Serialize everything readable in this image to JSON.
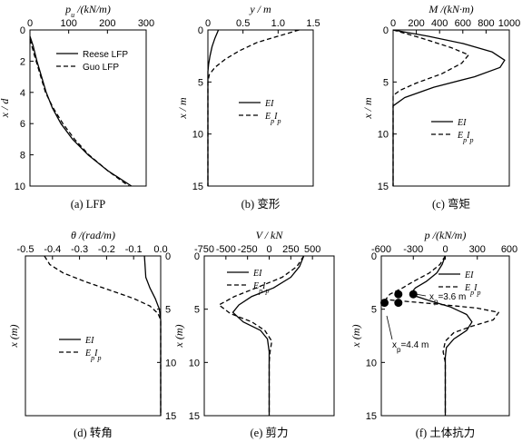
{
  "chart_data": [
    {
      "id": "a",
      "type": "line",
      "caption": "(a) LFP",
      "xlabel": "p_u /(kN/m)",
      "ylabel": "x / d",
      "xlim": [
        0,
        300
      ],
      "ylim": [
        0,
        10
      ],
      "y_reversed": true,
      "x_ticks": [
        0,
        100,
        200,
        300
      ],
      "y_ticks": [
        0,
        2,
        4,
        6,
        8,
        10
      ],
      "legend": "top-right",
      "series": [
        {
          "name": "Reese LFP",
          "style": "solid",
          "points": [
            [
              0,
              0.4
            ],
            [
              8,
              1
            ],
            [
              18,
              2
            ],
            [
              30,
              3
            ],
            [
              42,
              4
            ],
            [
              58,
              5
            ],
            [
              80,
              6
            ],
            [
              110,
              7
            ],
            [
              150,
              8
            ],
            [
              200,
              9
            ],
            [
              262,
              10
            ]
          ]
        },
        {
          "name": "Guo LFP",
          "style": "dashed",
          "points": [
            [
              0,
              0.6
            ],
            [
              10,
              1.5
            ],
            [
              22,
              2.5
            ],
            [
              40,
              4
            ],
            [
              60,
              5
            ],
            [
              85,
              6
            ],
            [
              115,
              7
            ],
            [
              152,
              8
            ],
            [
              200,
              9
            ],
            [
              255,
              10
            ]
          ]
        }
      ]
    },
    {
      "id": "b",
      "type": "line",
      "caption": "(b) 变形",
      "xlabel": "y / m",
      "ylabel": "x / m",
      "xlim": [
        0,
        1.5
      ],
      "ylim": [
        0,
        15
      ],
      "y_reversed": true,
      "x_ticks": [
        0,
        0.5,
        1.0,
        1.5
      ],
      "x_tick_labels": [
        "0",
        "0.5",
        "1.0",
        "1.5"
      ],
      "y_ticks": [
        0,
        5,
        10,
        15
      ],
      "legend": "center",
      "series": [
        {
          "name": "EI",
          "style": "solid",
          "points": [
            [
              0.15,
              0
            ],
            [
              0.1,
              0.8
            ],
            [
              0.06,
              1.6
            ],
            [
              0.03,
              2.5
            ],
            [
              0.01,
              3.3
            ],
            [
              0,
              4
            ],
            [
              0,
              15
            ]
          ]
        },
        {
          "name": "EpIp",
          "style": "dashed",
          "points": [
            [
              1.3,
              0
            ],
            [
              1.0,
              0.6
            ],
            [
              0.7,
              1.2
            ],
            [
              0.45,
              2
            ],
            [
              0.25,
              2.8
            ],
            [
              0.1,
              3.6
            ],
            [
              0.02,
              4.3
            ],
            [
              0,
              5
            ],
            [
              0,
              15
            ]
          ]
        }
      ]
    },
    {
      "id": "c",
      "type": "line",
      "caption": "(c) 弯矩",
      "xlabel": "M /(kN·m)",
      "ylabel": "x / m",
      "xlim": [
        0,
        1000
      ],
      "ylim": [
        0,
        15
      ],
      "y_reversed": true,
      "x_ticks": [
        0,
        200,
        400,
        600,
        800,
        1000
      ],
      "y_ticks": [
        0,
        5,
        10,
        15
      ],
      "legend": "bottom-right",
      "series": [
        {
          "name": "EI",
          "style": "solid",
          "points": [
            [
              0,
              0
            ],
            [
              300,
              0.6
            ],
            [
              600,
              1.3
            ],
            [
              850,
              2.1
            ],
            [
              960,
              2.9
            ],
            [
              920,
              3.6
            ],
            [
              700,
              4.5
            ],
            [
              350,
              5.5
            ],
            [
              100,
              6.5
            ],
            [
              0,
              7.3
            ],
            [
              0,
              15
            ]
          ]
        },
        {
          "name": "EpIp",
          "style": "dashed",
          "points": [
            [
              0,
              0
            ],
            [
              250,
              0.8
            ],
            [
              500,
              1.7
            ],
            [
              650,
              2.4
            ],
            [
              590,
              3.2
            ],
            [
              420,
              4.2
            ],
            [
              200,
              5.1
            ],
            [
              60,
              5.8
            ],
            [
              0,
              6.3
            ],
            [
              0,
              15
            ]
          ]
        }
      ]
    },
    {
      "id": "d",
      "type": "line",
      "caption": "(d) 转角",
      "xlabel": "θ /(rad/m)",
      "ylabel": "x (m)",
      "xlim": [
        -0.5,
        0.0
      ],
      "ylim": [
        0,
        15
      ],
      "y_reversed": true,
      "y_axis_side": "right",
      "x_ticks": [
        -0.5,
        -0.4,
        -0.3,
        -0.2,
        -0.1,
        0.0
      ],
      "x_tick_labels": [
        "-0.5",
        "-0.4",
        "-0.3",
        "-0.2",
        "-0.1",
        "0.0"
      ],
      "y_ticks": [
        0,
        5,
        10,
        15
      ],
      "legend": "bottom-left",
      "series": [
        {
          "name": "EI",
          "style": "solid",
          "points": [
            [
              -0.06,
              0
            ],
            [
              -0.055,
              2
            ],
            [
              -0.04,
              3
            ],
            [
              -0.02,
              4
            ],
            [
              -0.005,
              5
            ],
            [
              0,
              6
            ],
            [
              0,
              15
            ]
          ]
        },
        {
          "name": "EpIp",
          "style": "dashed",
          "points": [
            [
              -0.43,
              0
            ],
            [
              -0.41,
              0.8
            ],
            [
              -0.36,
              1.6
            ],
            [
              -0.28,
              2.4
            ],
            [
              -0.19,
              3.2
            ],
            [
              -0.1,
              4
            ],
            [
              -0.04,
              4.7
            ],
            [
              -0.01,
              5.4
            ],
            [
              0,
              6
            ],
            [
              0,
              15
            ]
          ]
        }
      ]
    },
    {
      "id": "e",
      "type": "line",
      "caption": "(e) 剪力",
      "xlabel": "V / kN",
      "ylabel": "x (m)",
      "xlim": [
        -750,
        750
      ],
      "ylim": [
        0,
        15
      ],
      "y_reversed": true,
      "x_ticks": [
        -750,
        -500,
        -250,
        0,
        250,
        500
      ],
      "x_tick_labels": [
        "-750",
        "-500",
        "-250",
        "0",
        "250",
        "500"
      ],
      "y_ticks": [
        0,
        5,
        10,
        15
      ],
      "legend": "top-left",
      "series": [
        {
          "name": "EI",
          "style": "solid",
          "points": [
            [
              400,
              0
            ],
            [
              350,
              1
            ],
            [
              250,
              2
            ],
            [
              50,
              3
            ],
            [
              -200,
              3.8
            ],
            [
              -350,
              4.6
            ],
            [
              -420,
              5.3
            ],
            [
              -300,
              6.2
            ],
            [
              -100,
              7
            ],
            [
              -20,
              7.8
            ],
            [
              0,
              9
            ],
            [
              0,
              15
            ]
          ]
        },
        {
          "name": "EpIp",
          "style": "dashed",
          "points": [
            [
              400,
              0
            ],
            [
              320,
              1
            ],
            [
              150,
              2
            ],
            [
              -150,
              3
            ],
            [
              -400,
              3.8
            ],
            [
              -580,
              4.6
            ],
            [
              -450,
              5.4
            ],
            [
              -200,
              6.2
            ],
            [
              -50,
              7
            ],
            [
              30,
              8
            ],
            [
              10,
              9
            ],
            [
              0,
              10
            ],
            [
              0,
              15
            ]
          ]
        }
      ]
    },
    {
      "id": "f",
      "type": "line",
      "caption": "(f) 土体抗力",
      "xlabel": "p /(kN/m)",
      "ylabel": "x (m)",
      "xlim": [
        -600,
        600
      ],
      "ylim": [
        0,
        15
      ],
      "y_reversed": true,
      "x_ticks": [
        -600,
        -300,
        0,
        300,
        600
      ],
      "x_tick_labels": [
        "-600",
        "-300",
        "0",
        "300",
        "600"
      ],
      "y_ticks": [
        0,
        5,
        10,
        15
      ],
      "legend": "top-right",
      "series": [
        {
          "name": "EI",
          "style": "solid",
          "points": [
            [
              0,
              0
            ],
            [
              -30,
              0.8
            ],
            [
              -80,
              1.6
            ],
            [
              -180,
              2.4
            ],
            [
              -280,
              3.0
            ],
            [
              -330,
              3.6
            ],
            [
              -150,
              4.2
            ],
            [
              50,
              4.8
            ],
            [
              200,
              5.5
            ],
            [
              250,
              6.2
            ],
            [
              200,
              7
            ],
            [
              80,
              7.8
            ],
            [
              10,
              8.6
            ],
            [
              0,
              9.5
            ],
            [
              0,
              15
            ]
          ]
        },
        {
          "name": "EpIp",
          "style": "dashed",
          "points": [
            [
              0,
              0
            ],
            [
              -50,
              0.8
            ],
            [
              -150,
              1.6
            ],
            [
              -300,
              2.4
            ],
            [
              -400,
              3.0
            ],
            [
              -520,
              3.6
            ],
            [
              -560,
              4.1
            ],
            [
              -100,
              4.5
            ],
            [
              300,
              4.9
            ],
            [
              500,
              5.3
            ],
            [
              450,
              6.0
            ],
            [
              250,
              6.6
            ],
            [
              80,
              7.2
            ],
            [
              0,
              8
            ],
            [
              -20,
              9
            ],
            [
              0,
              10
            ],
            [
              0,
              15
            ]
          ]
        }
      ],
      "markers": [
        [
          -440,
          3.6
        ],
        [
          -300,
          3.6
        ],
        [
          -570,
          4.4
        ],
        [
          -440,
          4.4
        ]
      ],
      "annotations": [
        {
          "text": "x_p=3.6 m"
        },
        {
          "text": "x_p=4.4 m"
        }
      ]
    }
  ]
}
